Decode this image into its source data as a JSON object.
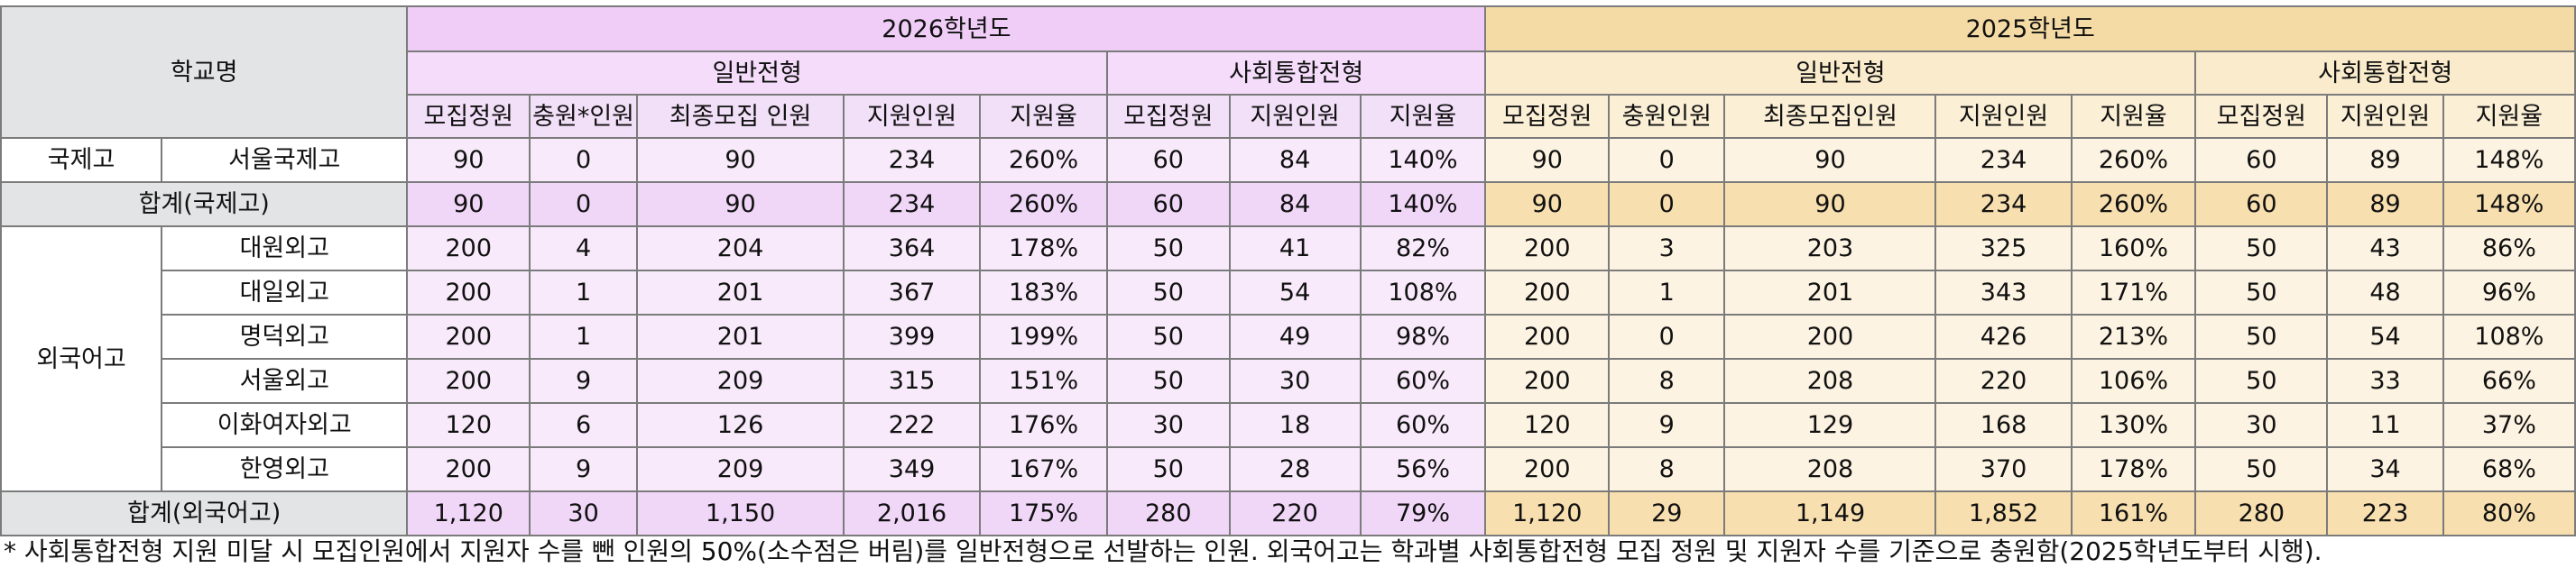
{
  "header": {
    "school_name": "학교명",
    "year_2026": "2026학년도",
    "year_2025": "2025학년도",
    "general": "일반전형",
    "social": "사회통합전형",
    "cols_2026_general": [
      "모집정원",
      "충원*인원",
      "최종모집 인원",
      "지원인원",
      "지원율"
    ],
    "cols_2026_social": [
      "모집정원",
      "지원인원",
      "지원율"
    ],
    "cols_2025_general": [
      "모집정원",
      "충원인원",
      "최종모집인원",
      "지원인원",
      "지원율"
    ],
    "cols_2025_social": [
      "모집정원",
      "지원인원",
      "지원율"
    ]
  },
  "rows": [
    {
      "category": "국제고",
      "school": "서울국제고",
      "y2026": [
        "90",
        "0",
        "90",
        "234",
        "260%",
        "60",
        "84",
        "140%"
      ],
      "y2025": [
        "90",
        "0",
        "90",
        "234",
        "260%",
        "60",
        "89",
        "148%"
      ]
    },
    {
      "label": "합계(국제고)",
      "y2026": [
        "90",
        "0",
        "90",
        "234",
        "260%",
        "60",
        "84",
        "140%"
      ],
      "y2025": [
        "90",
        "0",
        "90",
        "234",
        "260%",
        "60",
        "89",
        "148%"
      ]
    },
    {
      "category": "외국어고",
      "school": "대원외고",
      "y2026": [
        "200",
        "4",
        "204",
        "364",
        "178%",
        "50",
        "41",
        "82%"
      ],
      "y2025": [
        "200",
        "3",
        "203",
        "325",
        "160%",
        "50",
        "43",
        "86%"
      ]
    },
    {
      "school": "대일외고",
      "y2026": [
        "200",
        "1",
        "201",
        "367",
        "183%",
        "50",
        "54",
        "108%"
      ],
      "y2025": [
        "200",
        "1",
        "201",
        "343",
        "171%",
        "50",
        "48",
        "96%"
      ]
    },
    {
      "school": "명덕외고",
      "y2026": [
        "200",
        "1",
        "201",
        "399",
        "199%",
        "50",
        "49",
        "98%"
      ],
      "y2025": [
        "200",
        "0",
        "200",
        "426",
        "213%",
        "50",
        "54",
        "108%"
      ]
    },
    {
      "school": "서울외고",
      "y2026": [
        "200",
        "9",
        "209",
        "315",
        "151%",
        "50",
        "30",
        "60%"
      ],
      "y2025": [
        "200",
        "8",
        "208",
        "220",
        "106%",
        "50",
        "33",
        "66%"
      ]
    },
    {
      "school": "이화여자외고",
      "y2026": [
        "120",
        "6",
        "126",
        "222",
        "176%",
        "30",
        "18",
        "60%"
      ],
      "y2025": [
        "120",
        "9",
        "129",
        "168",
        "130%",
        "30",
        "11",
        "37%"
      ]
    },
    {
      "school": "한영외고",
      "y2026": [
        "200",
        "9",
        "209",
        "349",
        "167%",
        "50",
        "28",
        "56%"
      ],
      "y2025": [
        "200",
        "8",
        "208",
        "370",
        "178%",
        "50",
        "34",
        "68%"
      ]
    },
    {
      "label": "합계(외국어고)",
      "y2026": [
        "1,120",
        "30",
        "1,150",
        "2,016",
        "175%",
        "280",
        "220",
        "79%"
      ],
      "y2025": [
        "1,120",
        "29",
        "1,149",
        "1,852",
        "161%",
        "280",
        "223",
        "80%"
      ]
    }
  ],
  "footnote": "* 사회통합전형 지원 미달 시 모집인원에서 지원자 수를 뺀 인원의 50%(소수점은 버림)를 일반전형으로 선발하는 인원. 외국어고는 학과별 사회통합전형 모집 정원 및 지원자 수를 기준으로 충원함(2025학년도부터 시행).",
  "colors": {
    "purple_header": "#efcdf7",
    "purple_cell": "#f8eafb",
    "orange_header": "#f4dba5",
    "orange_cell": "#fdf3e2",
    "gray_header": "#e3e4e5"
  }
}
